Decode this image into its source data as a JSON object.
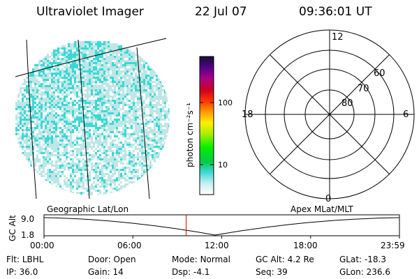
{
  "header": {
    "title": "Ultraviolet Imager",
    "date": "22 Jul 07",
    "time": "09:36:01 UT"
  },
  "colorbar": {
    "unit_label": "photon cm⁻²s⁻¹",
    "ticks": [
      "100",
      "10"
    ]
  },
  "polar_plot": {
    "mlt_labels": {
      "top": "12",
      "left": "18",
      "right": "6",
      "bottom": "0"
    },
    "lat_labels": [
      "60",
      "70",
      "80"
    ]
  },
  "timeline": {
    "y_axis_label": "GC Alt",
    "y_ticks": [
      "9.0",
      "1.8"
    ],
    "left_caption": "Geographic Lat/Lon",
    "right_caption": "Apex MLat/MLT",
    "x_ticks": [
      "00:00",
      "06:00",
      "12:00",
      "18:00",
      "23:59"
    ],
    "marker_time_fraction": 0.4
  },
  "status": {
    "row1": [
      {
        "label": "Flt:",
        "value": "LBHL"
      },
      {
        "label": "Door:",
        "value": "Open"
      },
      {
        "label": "Mode:",
        "value": "Normal"
      },
      {
        "label": "GC Alt:",
        "value": "4.2 Re"
      },
      {
        "label": "GLat:",
        "value": "-18.3"
      }
    ],
    "row2": [
      {
        "label": "IP:",
        "value": "36.0"
      },
      {
        "label": "Gain:",
        "value": "14"
      },
      {
        "label": "Dsp:",
        "value": "-4.1"
      },
      {
        "label": "Seq:",
        "value": "39"
      },
      {
        "label": "GLon:",
        "value": "236.6"
      }
    ]
  },
  "colors": {
    "noise_primary": "#3ad9d6",
    "noise_secondary": "#bfe6e6",
    "marker": "#cc0000"
  }
}
